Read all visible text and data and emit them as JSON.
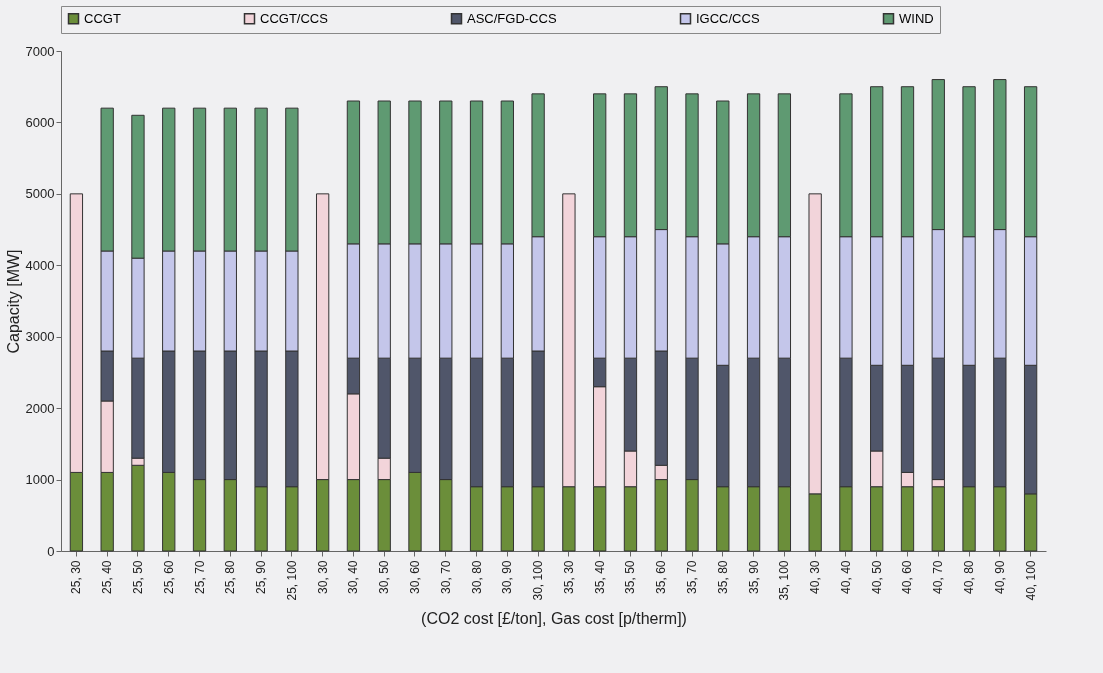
{
  "chart_data": {
    "type": "bar",
    "stacked": true,
    "xlabel": "(CO2 cost [£/ton], Gas cost [p/therm])",
    "ylabel": "Capacity [MW]",
    "categories": [
      "25, 30",
      "25, 40",
      "25, 50",
      "25, 60",
      "25, 70",
      "25, 80",
      "25, 90",
      "25, 100",
      "30, 30",
      "30, 40",
      "30, 50",
      "30, 60",
      "30, 70",
      "30, 80",
      "30, 90",
      "30, 100",
      "35, 30",
      "35, 40",
      "35, 50",
      "35, 60",
      "35, 70",
      "35, 80",
      "35, 90",
      "35, 100",
      "40, 30",
      "40, 40",
      "40, 50",
      "40, 60",
      "40, 70",
      "40, 80",
      "40, 90",
      "40, 100"
    ],
    "series": [
      {
        "name": "CCGT",
        "color": "#6b8e3a",
        "values": [
          1100,
          1100,
          1200,
          1100,
          1000,
          1000,
          900,
          900,
          1000,
          1000,
          1000,
          1100,
          1000,
          900,
          900,
          900,
          900,
          900,
          900,
          1000,
          1000,
          900,
          900,
          900,
          800,
          900,
          900,
          900,
          900,
          900,
          900,
          800
        ]
      },
      {
        "name": "CCGT/CCS",
        "color": "#f2d4da",
        "values": [
          3900,
          1000,
          100,
          null,
          null,
          null,
          null,
          null,
          4000,
          1200,
          300,
          null,
          null,
          null,
          null,
          null,
          4100,
          1400,
          500,
          200,
          null,
          null,
          null,
          null,
          4200,
          null,
          500,
          200,
          100,
          null,
          null,
          null
        ]
      },
      {
        "name": "ASC/FGD-CCS",
        "color": "#50566a",
        "values": [
          null,
          700,
          1400,
          1700,
          1800,
          1800,
          1900,
          1900,
          null,
          500,
          1400,
          1600,
          1700,
          1800,
          1800,
          1900,
          null,
          400,
          1300,
          1600,
          1700,
          1700,
          1800,
          1800,
          null,
          1800,
          1200,
          1500,
          1700,
          1700,
          1800,
          1800
        ]
      },
      {
        "name": "IGCC/CCS",
        "color": "#c4c6ea",
        "values": [
          null,
          1400,
          1400,
          1400,
          1400,
          1400,
          1400,
          1400,
          null,
          1600,
          1600,
          1600,
          1600,
          1600,
          1600,
          1600,
          null,
          1700,
          1700,
          1700,
          1700,
          1700,
          1700,
          1700,
          null,
          1700,
          1800,
          1800,
          1800,
          1800,
          1800,
          1800
        ]
      },
      {
        "name": "WIND",
        "color": "#5f9a72",
        "values": [
          null,
          2000,
          2000,
          2000,
          2000,
          2000,
          2000,
          2000,
          null,
          2000,
          2000,
          2000,
          2000,
          2000,
          2000,
          2000,
          null,
          2000,
          2000,
          2000,
          2000,
          2000,
          2000,
          2000,
          null,
          2000,
          2100,
          2100,
          2100,
          2100,
          2100,
          2100
        ]
      }
    ],
    "ylim": [
      0,
      7000
    ],
    "yticks": [
      0,
      1000,
      2000,
      3000,
      4000,
      5000,
      6000,
      7000
    ],
    "legend": "top"
  }
}
